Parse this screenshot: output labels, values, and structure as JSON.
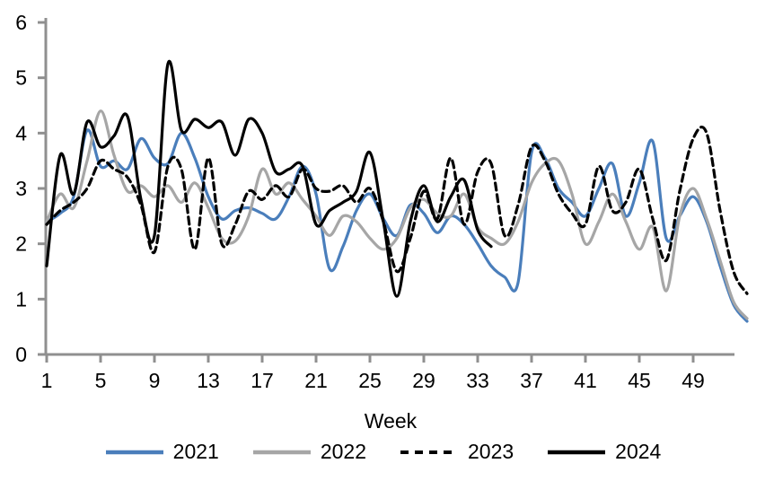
{
  "chart_data": {
    "type": "line",
    "title": "",
    "xlabel": "Week",
    "ylabel": "",
    "x_start": 1,
    "x_ticks": [
      1,
      5,
      9,
      13,
      17,
      21,
      25,
      29,
      33,
      37,
      41,
      45,
      49
    ],
    "y_ticks": [
      0,
      1,
      2,
      3,
      4,
      5,
      6
    ],
    "ylim": [
      0,
      6
    ],
    "xlim": [
      1,
      53
    ],
    "grid": false,
    "legend_position": "bottom",
    "axis_color": "#8f8f8f",
    "text_color": "#000000",
    "smoothed": true,
    "series": [
      {
        "name": "2021",
        "color": "#4a7ebb",
        "style": "solid",
        "values": [
          2.4,
          2.55,
          2.85,
          4.05,
          3.4,
          3.5,
          3.35,
          3.9,
          3.55,
          3.45,
          4.0,
          3.55,
          2.85,
          2.45,
          2.6,
          2.65,
          2.55,
          2.45,
          2.85,
          3.4,
          2.9,
          1.55,
          1.95,
          2.6,
          2.9,
          2.45,
          2.15,
          2.7,
          2.55,
          2.2,
          2.5,
          2.35,
          2.0,
          1.6,
          1.4,
          1.3,
          3.65,
          3.55,
          3.0,
          2.75,
          2.5,
          3.0,
          3.45,
          2.5,
          3.1,
          3.85,
          2.1,
          2.5,
          2.85,
          2.4,
          1.6,
          0.9,
          0.6
        ]
      },
      {
        "name": "2022",
        "color": "#a6a6a6",
        "style": "solid",
        "values": [
          2.4,
          2.9,
          2.65,
          3.5,
          4.4,
          3.6,
          2.95,
          3.05,
          2.85,
          3.05,
          2.75,
          3.1,
          2.65,
          2.1,
          2.05,
          2.5,
          3.35,
          2.9,
          3.1,
          2.8,
          2.5,
          2.15,
          2.5,
          2.4,
          2.1,
          1.9,
          2.1,
          2.65,
          2.8,
          2.55,
          2.5,
          2.9,
          2.3,
          2.1,
          2.0,
          2.4,
          3.1,
          3.45,
          3.5,
          2.9,
          2.0,
          2.4,
          2.9,
          2.4,
          1.9,
          2.3,
          1.15,
          2.5,
          3.0,
          2.45,
          1.7,
          0.95,
          0.65
        ]
      },
      {
        "name": "2023",
        "color": "#000000",
        "style": "dashed",
        "values": [
          2.35,
          2.6,
          2.75,
          3.0,
          3.5,
          3.35,
          3.2,
          2.7,
          1.85,
          3.4,
          3.35,
          1.9,
          3.55,
          2.0,
          2.35,
          2.95,
          2.8,
          3.05,
          2.85,
          3.35,
          3.0,
          2.95,
          3.05,
          2.75,
          3.0,
          2.4,
          1.5,
          2.1,
          2.95,
          2.45,
          3.55,
          2.35,
          3.3,
          3.45,
          2.15,
          2.7,
          3.75,
          3.5,
          2.9,
          2.55,
          2.35,
          3.4,
          2.6,
          2.75,
          3.35,
          2.45,
          1.7,
          2.95,
          3.9,
          4.0,
          2.6,
          1.5,
          1.1
        ]
      },
      {
        "name": "2024",
        "color": "#000000",
        "style": "solid",
        "values": [
          1.6,
          3.6,
          2.9,
          4.2,
          3.75,
          3.95,
          4.3,
          2.8,
          2.15,
          5.25,
          4.05,
          4.25,
          4.1,
          4.2,
          3.6,
          4.25,
          4.0,
          3.3,
          3.35,
          3.4,
          2.35,
          2.6,
          2.75,
          2.95,
          3.65,
          2.4,
          1.05,
          2.4,
          3.05,
          2.4,
          2.85,
          3.15,
          2.25,
          1.95,
          null,
          null,
          null,
          null,
          null,
          null,
          null,
          null,
          null,
          null,
          null,
          null,
          null,
          null,
          null,
          null,
          null,
          null,
          null
        ]
      }
    ]
  }
}
